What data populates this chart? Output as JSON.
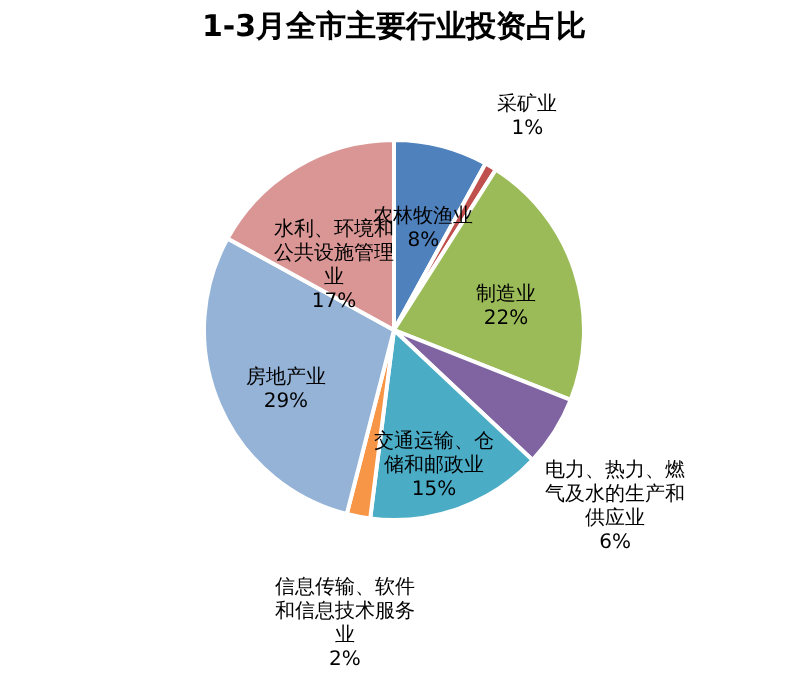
{
  "chart_data": {
    "type": "pie",
    "title": "1-3月全市主要行业投资占比",
    "categories": [
      "农林牧渔业",
      "采矿业",
      "制造业",
      "电力、热力、燃气及水的生产和供应业",
      "交通运输、仓储和邮政业",
      "信息传输、软件和信息技术服务业",
      "房地产业",
      "水利、环境和公共设施管理业"
    ],
    "values": [
      8,
      1,
      22,
      6,
      15,
      2,
      29,
      17
    ],
    "value_labels": [
      "8%",
      "1%",
      "22%",
      "6%",
      "15%",
      "2%",
      "29%",
      "17%"
    ],
    "colors": [
      "#4f81bd",
      "#c0504d",
      "#9bbb59",
      "#8064a2",
      "#4bacc6",
      "#f79646",
      "#95b3d7",
      "#d99694"
    ],
    "legend": false
  }
}
